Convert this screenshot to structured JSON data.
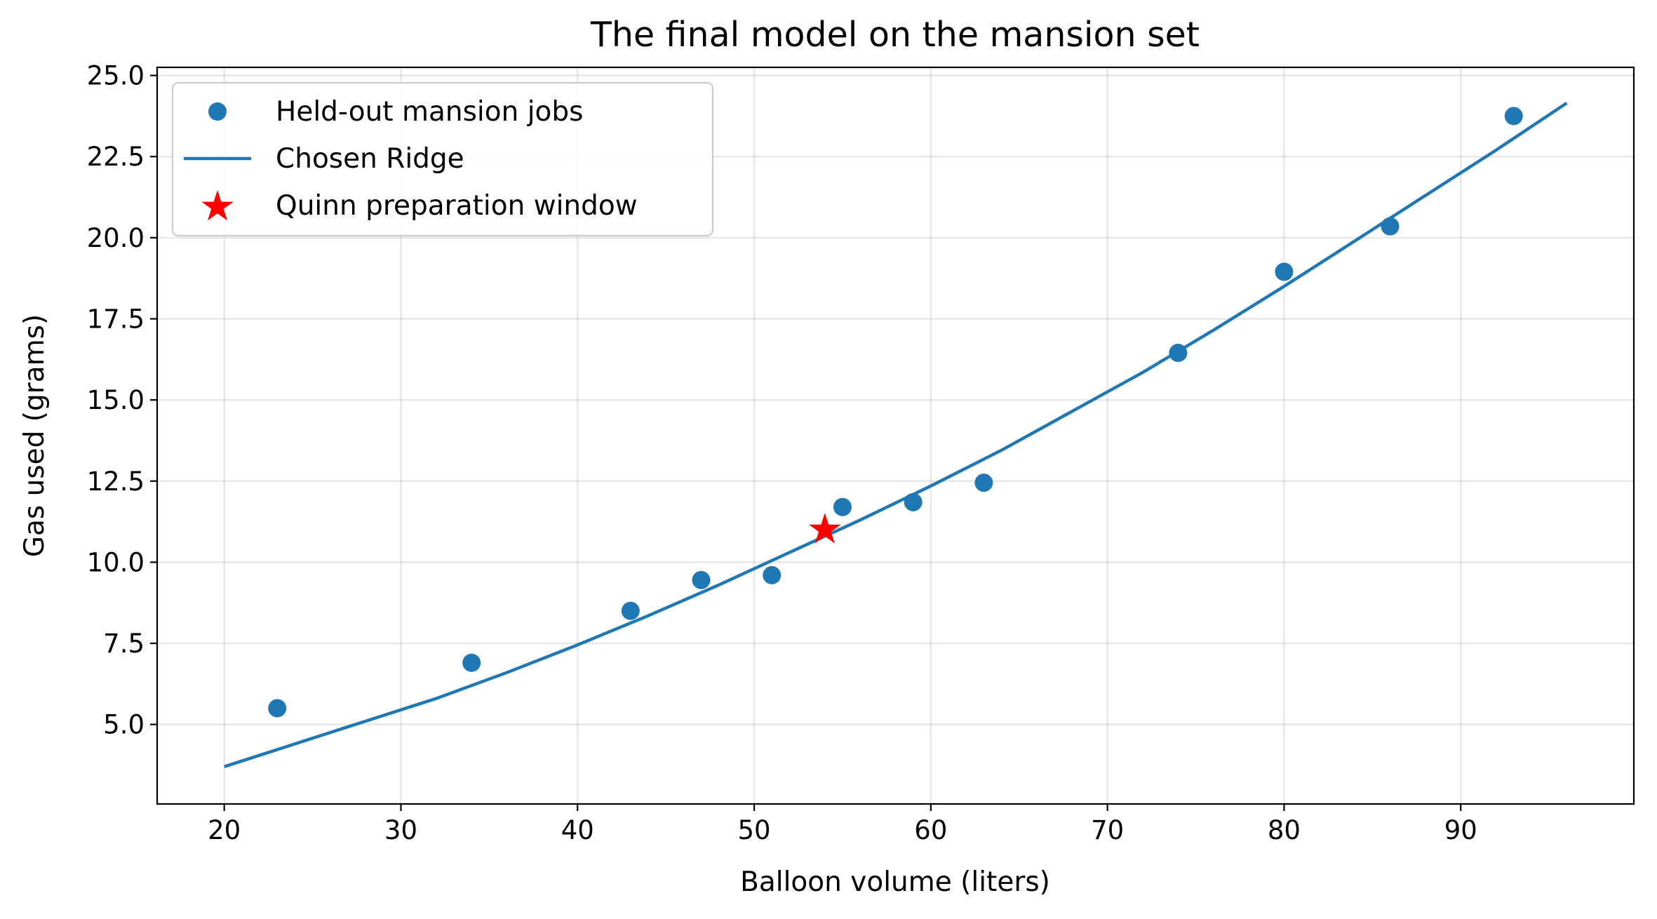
{
  "chart_data": {
    "type": "scatter",
    "title": "The final model on the mansion set",
    "xlabel": "Balloon volume (liters)",
    "ylabel": "Gas used (grams)",
    "xlim": [
      16.2,
      99.8
    ],
    "ylim": [
      2.55,
      25.25
    ],
    "xticks": [
      20,
      30,
      40,
      50,
      60,
      70,
      80,
      90
    ],
    "yticks": [
      5.0,
      7.5,
      10.0,
      12.5,
      15.0,
      17.5,
      20.0,
      22.5,
      25.0
    ],
    "grid": true,
    "legend_position": "upper-left",
    "series": [
      {
        "name": "Held-out mansion jobs",
        "kind": "scatter",
        "marker": "circle",
        "color": "#1f77b4",
        "x": [
          23,
          34,
          43,
          47,
          51,
          55,
          59,
          63,
          74,
          80,
          86,
          93
        ],
        "y": [
          5.5,
          6.9,
          8.5,
          9.45,
          9.6,
          11.7,
          11.85,
          12.45,
          16.45,
          18.95,
          20.35,
          23.75
        ]
      },
      {
        "name": "Chosen Ridge",
        "kind": "line",
        "color": "#1f77b4",
        "x": [
          20,
          24,
          28,
          32,
          36,
          40,
          44,
          48,
          52,
          56,
          60,
          64,
          68,
          72,
          76,
          80,
          84,
          88,
          92,
          96
        ],
        "y": [
          3.7,
          4.4,
          5.1,
          5.8,
          6.6,
          7.45,
          8.35,
          9.3,
          10.3,
          11.3,
          12.35,
          13.45,
          14.65,
          15.85,
          17.15,
          18.5,
          19.9,
          21.3,
          22.7,
          24.15
        ]
      },
      {
        "name": "Quinn preparation window",
        "kind": "scatter",
        "marker": "star",
        "color": "#ff0000",
        "x": [
          54
        ],
        "y": [
          11.0
        ]
      }
    ]
  }
}
